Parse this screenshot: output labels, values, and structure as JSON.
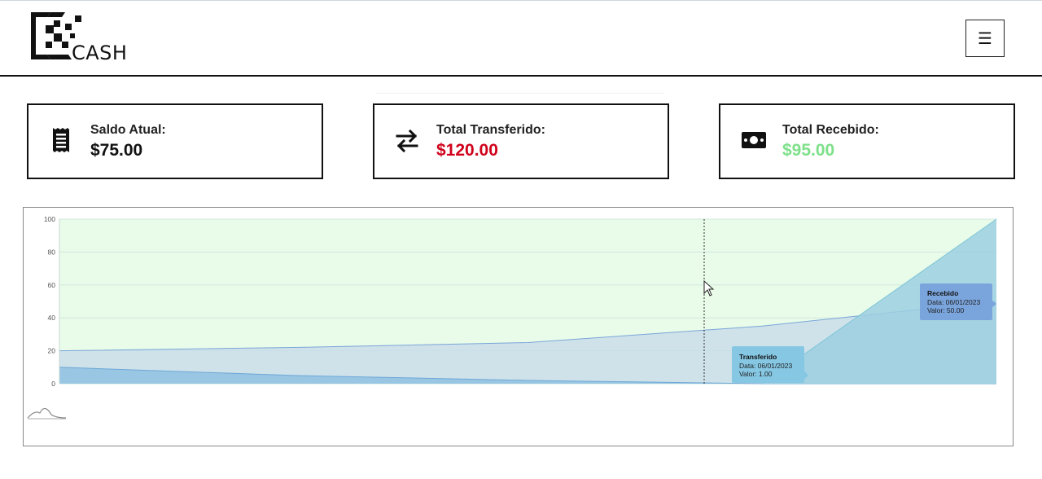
{
  "app": {
    "logo_text": "CASH",
    "menu_icon": "hamburger-icon"
  },
  "cards": [
    {
      "label": "Saldo Atual:",
      "value": "$75.00",
      "icon": "receipt-icon",
      "color": "#111111"
    },
    {
      "label": "Total Transferido:",
      "value": "$120.00",
      "icon": "transfer-arrows-icon",
      "color": "#d0021b"
    },
    {
      "label": "Total Recebido:",
      "value": "$95.00",
      "icon": "money-bill-icon",
      "color": "#7ee08a"
    }
  ],
  "chart_data": {
    "type": "area",
    "y_ticks": [
      "100",
      "80",
      "60",
      "40",
      "20",
      "0"
    ],
    "ylim": [
      0,
      100
    ],
    "grid": true,
    "plot_background": "#e9fbe9",
    "x": [
      0,
      1,
      2,
      3,
      4
    ],
    "series": [
      {
        "values": [
          20,
          22,
          25,
          35,
          50
        ],
        "color": "#7aa6d8",
        "fill": "#c6d9ea"
      },
      {
        "values": [
          10,
          5,
          2,
          0,
          0
        ],
        "color": "#6fa8d6",
        "fill": "#8ec1e2"
      },
      {
        "values": [
          null,
          null,
          null,
          0,
          100
        ],
        "color": "#7ec6d6",
        "fill": "#9ccfe0"
      }
    ],
    "tooltips": [
      {
        "title": "Transferido",
        "date": "Data: 06/01/2023",
        "value": "Valor: 1.00",
        "color": "#86c7e3"
      },
      {
        "title": "Recebido",
        "date": "Data: 06/01/2023",
        "value": "Valor: 50.00",
        "color": "#7aa4dc"
      }
    ]
  }
}
